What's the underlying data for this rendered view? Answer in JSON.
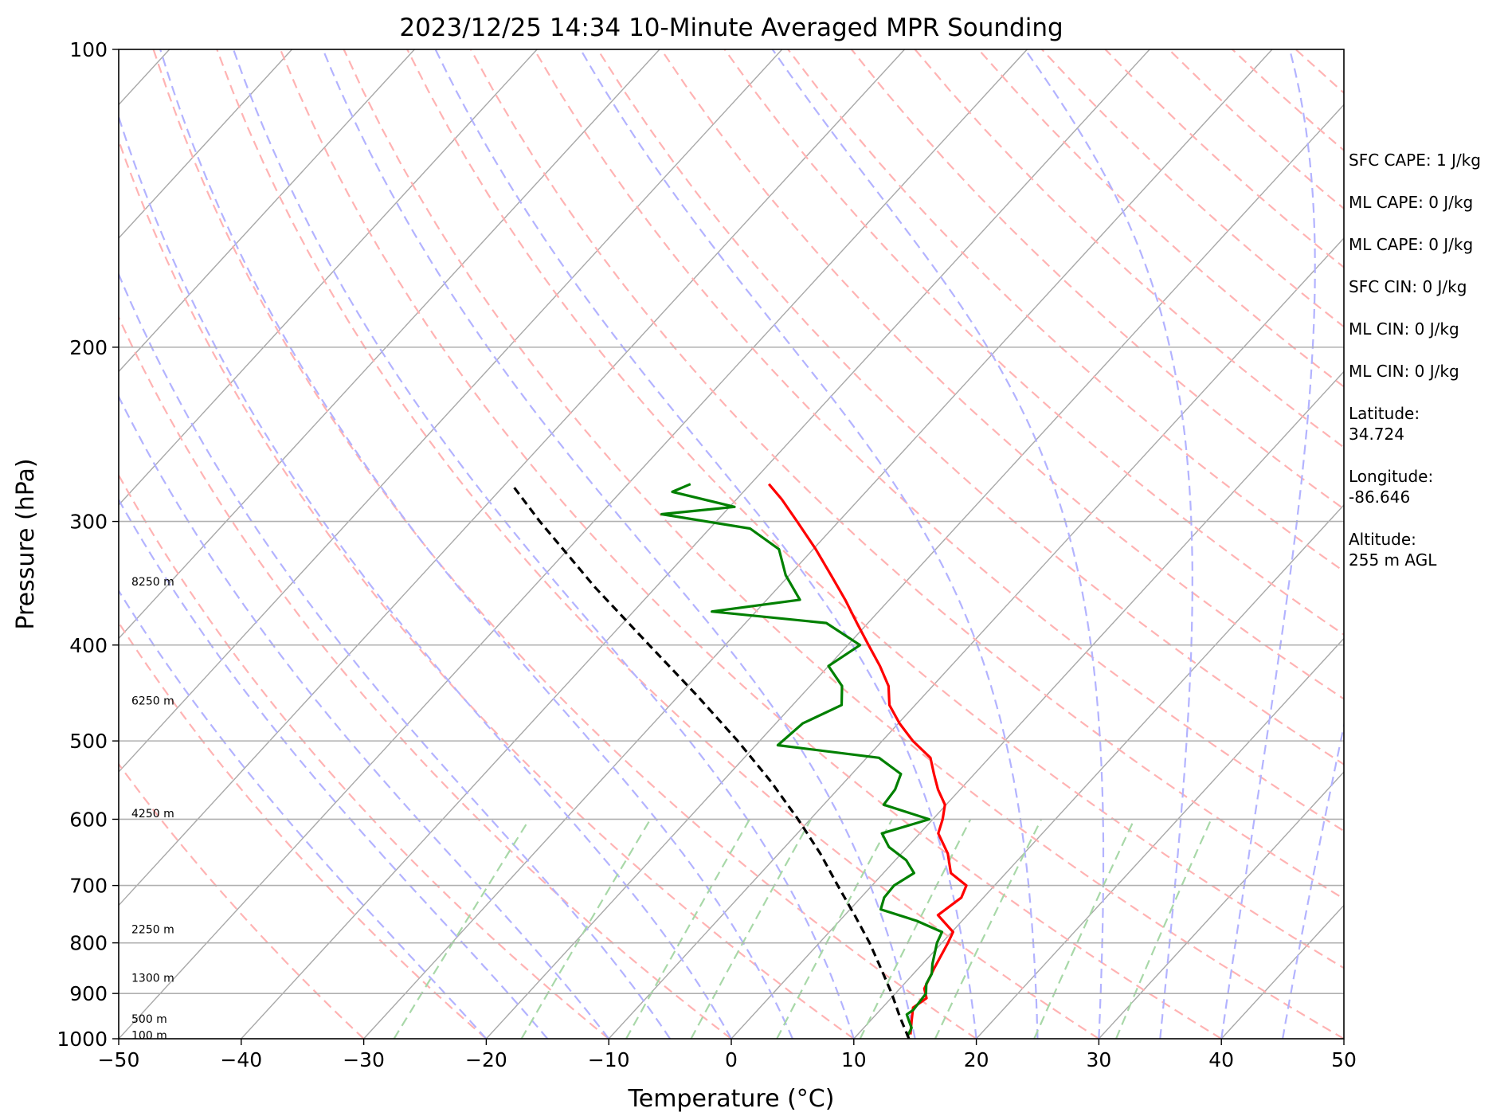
{
  "chart_data": {
    "type": "line",
    "title": "2023/12/25 14:34 10-Minute Averaged MPR Sounding",
    "xlabel": "Temperature (°C)",
    "ylabel": "Pressure (hPa)",
    "xlim": [
      -50,
      50
    ],
    "ylim": [
      1000,
      100
    ],
    "y_scale": "log",
    "skew": "skew-T",
    "x_ticks": [
      -50,
      -40,
      -30,
      -20,
      -10,
      0,
      10,
      20,
      30,
      40,
      50
    ],
    "y_ticks": [
      100,
      200,
      300,
      400,
      500,
      600,
      700,
      800,
      900,
      1000
    ],
    "grid": true,
    "background_lines": {
      "isotherms": {
        "color": "#a8a8a8"
      },
      "dry_adiabats": {
        "color": "#ffb3b3"
      },
      "moist_adiabats": {
        "color": "#b3b3ff"
      },
      "mixing_ratio": {
        "color": "#a8d8a8"
      }
    },
    "height_labels": [
      {
        "text": "100 m",
        "pressure": 992
      },
      {
        "text": "500 m",
        "pressure": 955
      },
      {
        "text": "1300 m",
        "pressure": 868
      },
      {
        "text": "2250 m",
        "pressure": 775
      },
      {
        "text": "4250 m",
        "pressure": 592
      },
      {
        "text": "6250 m",
        "pressure": 455
      },
      {
        "text": "8250 m",
        "pressure": 345
      }
    ],
    "series": [
      {
        "kind": "temperature",
        "color": "#ff0000",
        "points": [
          {
            "p": 990,
            "t": 14.3
          },
          {
            "p": 960,
            "t": 13.4
          },
          {
            "p": 930,
            "t": 12.5
          },
          {
            "p": 910,
            "t": 12.9
          },
          {
            "p": 890,
            "t": 12.0
          },
          {
            "p": 850,
            "t": 11.3
          },
          {
            "p": 800,
            "t": 10.5
          },
          {
            "p": 780,
            "t": 10.1
          },
          {
            "p": 750,
            "t": 7.6
          },
          {
            "p": 720,
            "t": 8.2
          },
          {
            "p": 700,
            "t": 7.7
          },
          {
            "p": 680,
            "t": 5.5
          },
          {
            "p": 650,
            "t": 3.8
          },
          {
            "p": 620,
            "t": 1.5
          },
          {
            "p": 600,
            "t": 0.8
          },
          {
            "p": 580,
            "t": -0.1
          },
          {
            "p": 560,
            "t": -1.8
          },
          {
            "p": 540,
            "t": -3.3
          },
          {
            "p": 520,
            "t": -4.8
          },
          {
            "p": 500,
            "t": -7.5
          },
          {
            "p": 480,
            "t": -9.9
          },
          {
            "p": 460,
            "t": -12.1
          },
          {
            "p": 440,
            "t": -13.6
          },
          {
            "p": 420,
            "t": -15.8
          },
          {
            "p": 400,
            "t": -18.3
          },
          {
            "p": 380,
            "t": -20.9
          },
          {
            "p": 360,
            "t": -23.6
          },
          {
            "p": 340,
            "t": -26.6
          },
          {
            "p": 320,
            "t": -29.8
          },
          {
            "p": 300,
            "t": -33.4
          },
          {
            "p": 285,
            "t": -36.3
          },
          {
            "p": 275,
            "t": -38.5
          }
        ]
      },
      {
        "kind": "dewpoint",
        "color": "#008000",
        "points": [
          {
            "p": 995,
            "t": 14.2
          },
          {
            "p": 975,
            "t": 13.9
          },
          {
            "p": 960,
            "t": 13.2
          },
          {
            "p": 945,
            "t": 12.5
          },
          {
            "p": 935,
            "t": 12.7
          },
          {
            "p": 900,
            "t": 12.5
          },
          {
            "p": 880,
            "t": 11.8
          },
          {
            "p": 860,
            "t": 11.5
          },
          {
            "p": 840,
            "t": 10.8
          },
          {
            "p": 800,
            "t": 9.6
          },
          {
            "p": 780,
            "t": 9.2
          },
          {
            "p": 760,
            "t": 6.3
          },
          {
            "p": 740,
            "t": 2.5
          },
          {
            "p": 720,
            "t": 1.9
          },
          {
            "p": 700,
            "t": 1.8
          },
          {
            "p": 680,
            "t": 2.5
          },
          {
            "p": 660,
            "t": 0.9
          },
          {
            "p": 640,
            "t": -1.5
          },
          {
            "p": 620,
            "t": -3.1
          },
          {
            "p": 600,
            "t": -0.3
          },
          {
            "p": 580,
            "t": -5.1
          },
          {
            "p": 560,
            "t": -5.3
          },
          {
            "p": 540,
            "t": -6.0
          },
          {
            "p": 520,
            "t": -9.0
          },
          {
            "p": 505,
            "t": -18.2
          },
          {
            "p": 480,
            "t": -17.8
          },
          {
            "p": 460,
            "t": -16.0
          },
          {
            "p": 440,
            "t": -17.4
          },
          {
            "p": 420,
            "t": -20.0
          },
          {
            "p": 400,
            "t": -19.0
          },
          {
            "p": 380,
            "t": -23.4
          },
          {
            "p": 370,
            "t": -33.6
          },
          {
            "p": 360,
            "t": -27.3
          },
          {
            "p": 340,
            "t": -30.3
          },
          {
            "p": 320,
            "t": -32.8
          },
          {
            "p": 305,
            "t": -36.7
          },
          {
            "p": 295,
            "t": -45.0
          },
          {
            "p": 290,
            "t": -39.6
          },
          {
            "p": 280,
            "t": -45.8
          },
          {
            "p": 275,
            "t": -44.9
          }
        ]
      },
      {
        "kind": "parcel",
        "color": "#000000",
        "dashed": true,
        "points": [
          {
            "p": 1000,
            "t": 14.5
          },
          {
            "p": 950,
            "t": 12.1
          },
          {
            "p": 900,
            "t": 9.7
          },
          {
            "p": 850,
            "t": 7.0
          },
          {
            "p": 800,
            "t": 4.1
          },
          {
            "p": 750,
            "t": 0.8
          },
          {
            "p": 700,
            "t": -2.8
          },
          {
            "p": 650,
            "t": -6.6
          },
          {
            "p": 600,
            "t": -11.0
          },
          {
            "p": 550,
            "t": -16.0
          },
          {
            "p": 500,
            "t": -21.8
          },
          {
            "p": 450,
            "t": -28.5
          },
          {
            "p": 400,
            "t": -36.2
          },
          {
            "p": 350,
            "t": -44.9
          },
          {
            "p": 300,
            "t": -54.4
          },
          {
            "p": 275,
            "t": -59.5
          }
        ]
      }
    ]
  },
  "info": [
    "SFC CAPE: 1 J/kg",
    "ML CAPE: 0 J/kg",
    "ML CAPE: 0 J/kg",
    "SFC CIN: 0 J/kg",
    "ML CIN: 0 J/kg",
    "ML CIN: 0 J/kg",
    "Latitude:\n34.724",
    "Longitude:\n-86.646",
    "Altitude:\n255 m AGL"
  ]
}
